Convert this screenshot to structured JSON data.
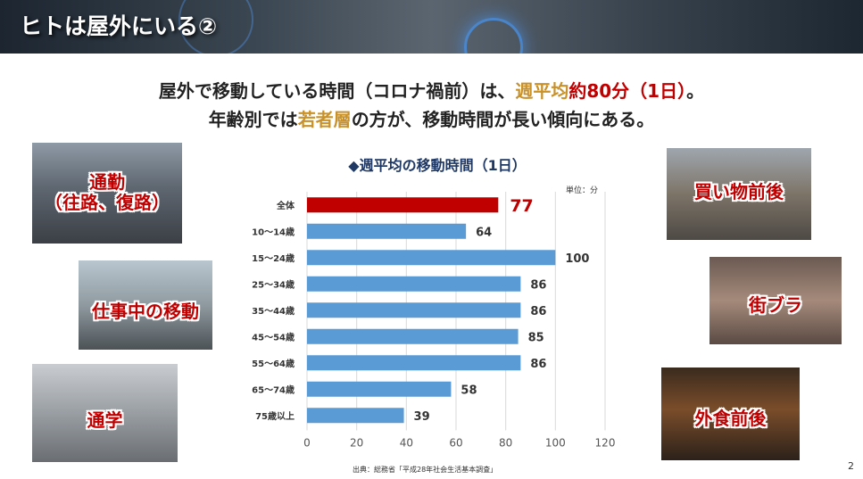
{
  "header": {
    "title": "ヒトは屋外にいる②"
  },
  "headline": {
    "line1_a": "屋外で移動している時間（コロナ禍前）は、",
    "line1_b": "週平均",
    "line1_c": "約80分（1日）",
    "line1_d": "。",
    "line2_a": "年齢別では",
    "line2_b": "若者層",
    "line2_c": "の方が、移動時間が長い傾向にある。"
  },
  "photos": {
    "commute": "通勤\n（往路、復路）",
    "work": "仕事中の移動",
    "school": "通学",
    "shopping": "買い物前後",
    "stroll": "街ブラ",
    "dining": "外食前後"
  },
  "chart_data": {
    "type": "bar",
    "orientation": "horizontal",
    "title": "◆週平均の移動時間（1日）",
    "unit": "単位：分",
    "categories": [
      "全体",
      "10～14歳",
      "15～24歳",
      "25～34歳",
      "35～44歳",
      "45～54歳",
      "55～64歳",
      "65～74歳",
      "75歳以上"
    ],
    "values": [
      77,
      64,
      100,
      86,
      86,
      85,
      86,
      58,
      39
    ],
    "highlight_index": 0,
    "xlim": [
      0,
      120
    ],
    "xticks": [
      0,
      20,
      40,
      60,
      80,
      100,
      120
    ],
    "grid": true,
    "colors": {
      "bar": "#5b9bd5",
      "highlight": "#c00000",
      "grid": "#d9d9d9"
    }
  },
  "source": "出典：総務省「平成28年社会生活基本調査」",
  "page_number": "2",
  "colors": {
    "gold": "#c8912a",
    "red": "#c00000",
    "navy": "#1f3864"
  }
}
